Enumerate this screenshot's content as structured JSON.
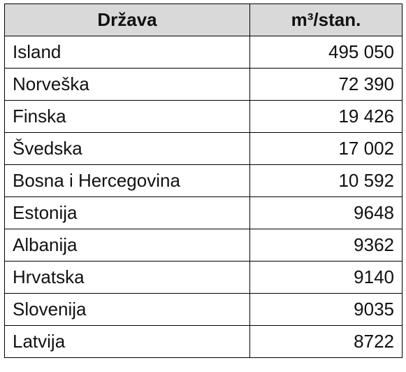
{
  "table": {
    "header": [
      "Država",
      "m³/stan."
    ],
    "rows": [
      [
        "Island",
        "495 050"
      ],
      [
        "Norveška",
        "72 390"
      ],
      [
        "Finska",
        "19 426"
      ],
      [
        "Švedska",
        "17 002"
      ],
      [
        "Bosna i Hercegovina",
        "10 592"
      ],
      [
        "Estonija",
        "9648"
      ],
      [
        "Albanija",
        "9362"
      ],
      [
        "Hrvatska",
        "9140"
      ],
      [
        "Slovenija",
        "9035"
      ],
      [
        "Latvija",
        "8722"
      ]
    ]
  }
}
